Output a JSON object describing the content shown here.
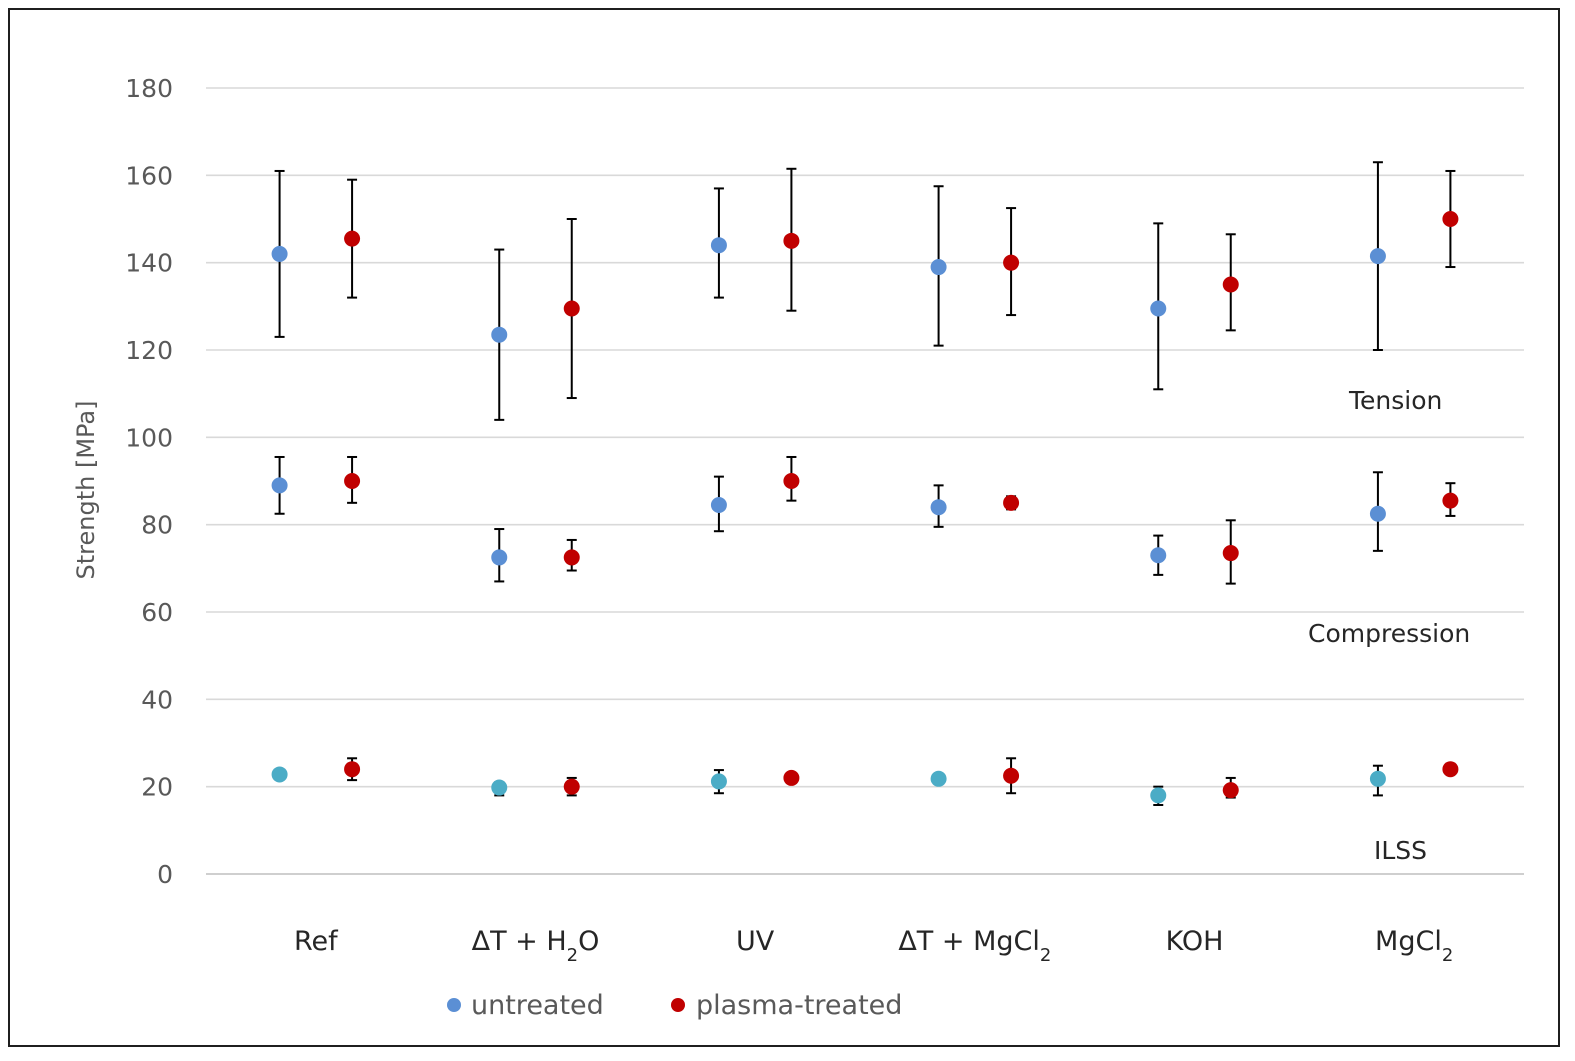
{
  "chart_data": {
    "type": "scatter",
    "ylabel": "Strength [MPa]",
    "ylim": [
      0,
      180
    ],
    "yticks": [
      0,
      20,
      40,
      60,
      80,
      100,
      120,
      140,
      160,
      180
    ],
    "grid": true,
    "legend_position": "bottom-left",
    "categories": [
      {
        "base": "Ref",
        "sub": "",
        "tail": ""
      },
      {
        "base": "ΔT + H",
        "sub": "2",
        "tail": "O"
      },
      {
        "base": "UV",
        "sub": "",
        "tail": ""
      },
      {
        "base": "ΔT + MgCl",
        "sub": "2",
        "tail": ""
      },
      {
        "base": "KOH",
        "sub": "",
        "tail": ""
      },
      {
        "base": "MgCl",
        "sub": "2",
        "tail": ""
      }
    ],
    "series": [
      {
        "name": "untreated",
        "color": "#5b8fd4",
        "tension": {
          "values": [
            142,
            123.5,
            144,
            139,
            129.5,
            141.5
          ],
          "err_low": [
            123,
            104,
            132,
            121,
            111,
            120
          ],
          "err_high": [
            161,
            143,
            157,
            157.5,
            149,
            163
          ]
        },
        "compression": {
          "values": [
            89,
            72.5,
            84.5,
            84,
            73,
            82.5
          ],
          "err_low": [
            82.5,
            67,
            78.5,
            79.5,
            68.5,
            74
          ],
          "err_high": [
            95.5,
            79,
            91,
            89,
            77.5,
            92
          ]
        },
        "ilss": {
          "values": [
            22.8,
            19.8,
            21.2,
            21.8,
            18,
            21.8
          ],
          "err_low": [
            21.8,
            18,
            18.5,
            20.8,
            15.8,
            18
          ],
          "err_high": [
            23.8,
            21,
            23.8,
            22.5,
            20,
            24.8
          ],
          "color": "#4bacc6"
        }
      },
      {
        "name": "plasma-treated",
        "color": "#c00000",
        "tension": {
          "values": [
            145.5,
            129.5,
            145,
            140,
            135,
            150
          ],
          "err_low": [
            132,
            109,
            129,
            128,
            124.5,
            139
          ],
          "err_high": [
            159,
            150,
            161.5,
            152.5,
            146.5,
            161
          ]
        },
        "compression": {
          "values": [
            90,
            72.5,
            90,
            85,
            73.5,
            85.5
          ],
          "err_low": [
            85,
            69.5,
            85.5,
            83.5,
            66.5,
            82
          ],
          "err_high": [
            95.5,
            76.5,
            95.5,
            86.5,
            81,
            89.5
          ]
        },
        "ilss": {
          "values": [
            24,
            20,
            22,
            22.5,
            19.2,
            24
          ],
          "err_low": [
            21.5,
            18,
            21.5,
            18.5,
            17.5,
            23.2
          ],
          "err_high": [
            26.5,
            22,
            22.5,
            26.5,
            22,
            24.8
          ]
        }
      }
    ],
    "annotations": [
      "Tension",
      "Compression",
      "ILSS"
    ]
  }
}
